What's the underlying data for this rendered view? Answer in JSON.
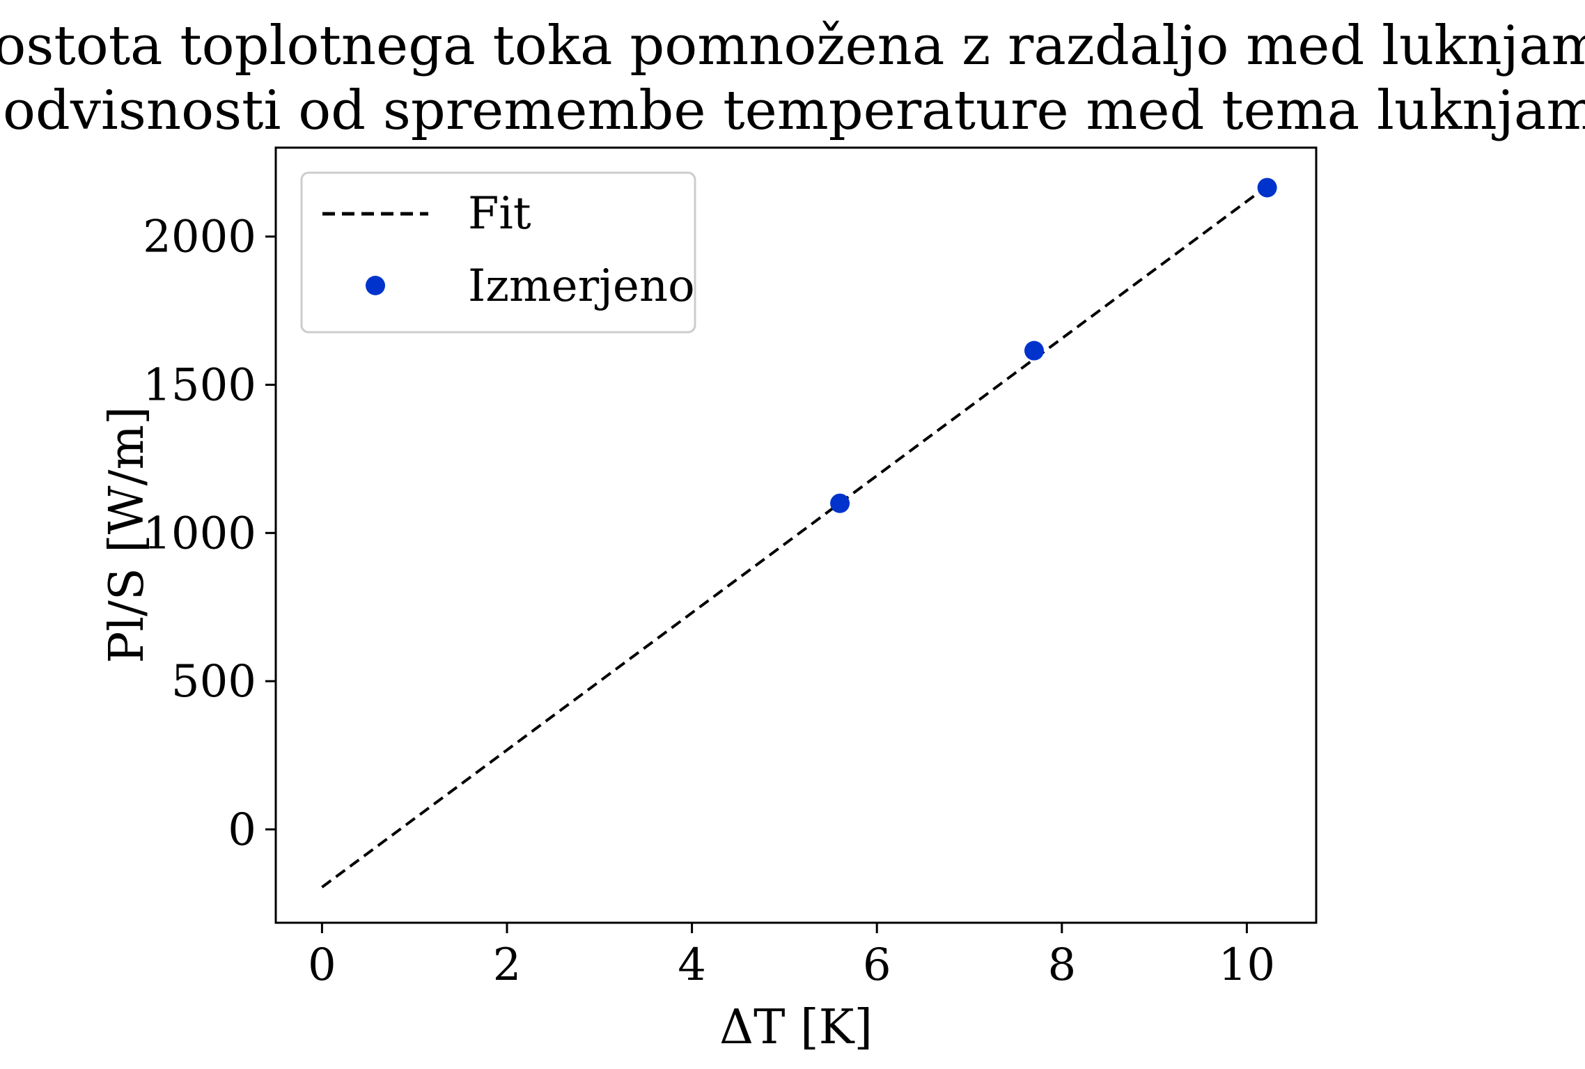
{
  "chart_data": {
    "type": "scatter",
    "title": "Gostota toplotnega toka pomnožena z razdaljo med luknjama",
    "subtitle": "v odvisnosti od spremembe temperature med tema luknjama",
    "xlabel": "ΔT [K]",
    "ylabel": "Pl/S [W/m]",
    "xlim": [
      -0.5,
      10.75
    ],
    "ylim": [
      -315,
      2300
    ],
    "xticks": [
      0,
      2,
      4,
      6,
      8,
      10
    ],
    "yticks": [
      0,
      500,
      1000,
      1500,
      2000
    ],
    "grid": false,
    "legend_position": "top-left",
    "series": [
      {
        "name": "Fit",
        "kind": "line",
        "style": "dashed",
        "color": "#000000",
        "x": [
          0,
          10.22
        ],
        "y": [
          -195,
          2170
        ]
      },
      {
        "name": "Izmerjeno",
        "kind": "scatter",
        "color": "#0033cc",
        "x": [
          5.6,
          7.7,
          10.22
        ],
        "y": [
          1100,
          1615,
          2165
        ]
      }
    ]
  }
}
